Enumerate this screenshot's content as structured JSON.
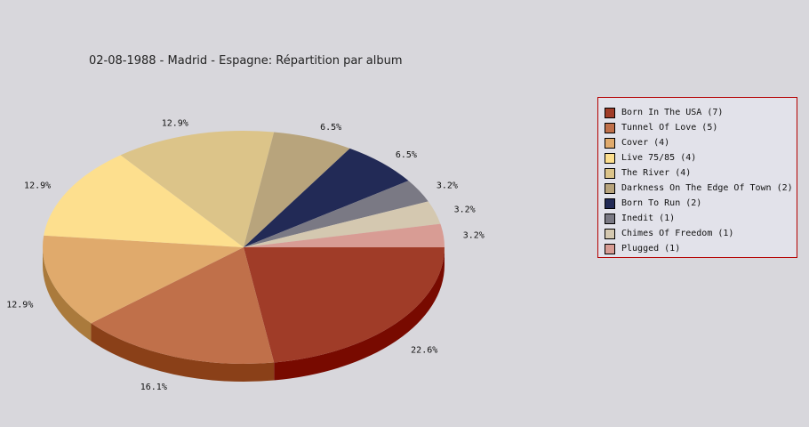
{
  "chart_data": {
    "type": "pie",
    "title": "02-08-1988 - Madrid - Espagne:  Répartition par album",
    "legend_position": "right",
    "slices": [
      {
        "label": "Born In The USA (7)",
        "value": 7,
        "percent": "22.6%",
        "color": "#a03c28",
        "side_color": "#780a00"
      },
      {
        "label": "Tunnel Of Love (5)",
        "value": 5,
        "percent": "16.1%",
        "color": "#c0704a",
        "side_color": "#8a4018"
      },
      {
        "label": "Cover (4)",
        "value": 4,
        "percent": "12.9%",
        "color": "#e0aa6c",
        "side_color": "#aa7a3c"
      },
      {
        "label": "Live 75/85 (4)",
        "value": 4,
        "percent": "12.9%",
        "color": "#fddf8e",
        "side_color": "#c8aa5c"
      },
      {
        "label": "The River (4)",
        "value": 4,
        "percent": "12.9%",
        "color": "#dcc489",
        "side_color": "#a88e58"
      },
      {
        "label": "Darkness On The Edge Of Town (2)",
        "value": 2,
        "percent": "6.5%",
        "color": "#b8a47c",
        "side_color": "#86744c"
      },
      {
        "label": "Born To Run (2)",
        "value": 2,
        "percent": "6.5%",
        "color": "#222a56",
        "side_color": "#10163a"
      },
      {
        "label": "Inedit (1)",
        "value": 1,
        "percent": "3.2%",
        "color": "#7a7984",
        "side_color": "#55545e"
      },
      {
        "label": "Chimes Of Freedom (1)",
        "value": 1,
        "percent": "3.2%",
        "color": "#d4c8b0",
        "side_color": "#a89c84"
      },
      {
        "label": "Plugged (1)",
        "value": 1,
        "percent": "3.2%",
        "color": "#d89c94",
        "side_color": "#a86c64"
      }
    ]
  }
}
